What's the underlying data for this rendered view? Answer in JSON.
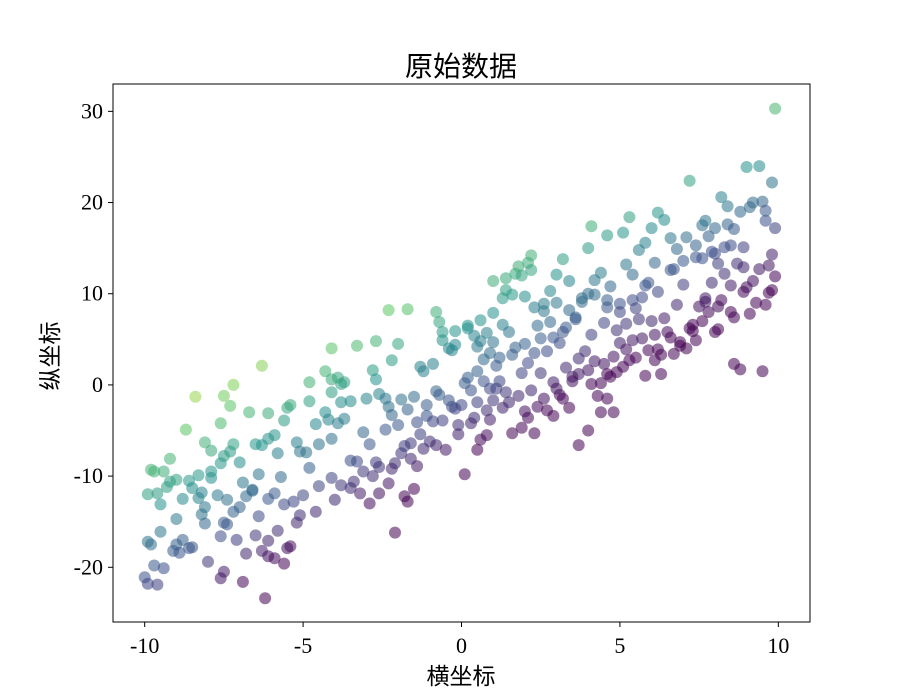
{
  "chart_data": {
    "type": "scatter",
    "title": "原始数据",
    "xlabel": "横坐标",
    "ylabel": "纵坐标",
    "xlim": [
      -11,
      11
    ],
    "ylim": [
      -26,
      33
    ],
    "xticks": [
      -10,
      -5,
      0,
      5,
      10
    ],
    "yticks": [
      -20,
      -10,
      0,
      10,
      20,
      30
    ],
    "tick_labels_x": [
      "-10",
      "-5",
      "0",
      "5",
      "10"
    ],
    "tick_labels_y": [
      "-20",
      "-10",
      "0",
      "10",
      "20",
      "30"
    ],
    "grid": false,
    "colormap": "viridis",
    "marker_alpha": 0.55,
    "points": [
      [
        -10.0,
        -21.1
      ],
      [
        -9.9,
        -21.8
      ],
      [
        -9.6,
        -21.9
      ],
      [
        -9.7,
        -19.8
      ],
      [
        -9.9,
        -17.2
      ],
      [
        -9.8,
        -17.5
      ],
      [
        -9.5,
        -16.1
      ],
      [
        -9.1,
        -18.2
      ],
      [
        -9.0,
        -17.5
      ],
      [
        -8.8,
        -17.0
      ],
      [
        -8.6,
        -17.9
      ],
      [
        -8.5,
        -17.8
      ],
      [
        -8.1,
        -15.2
      ],
      [
        -8.2,
        -14.2
      ],
      [
        -7.6,
        -16.6
      ],
      [
        -7.5,
        -15.1
      ],
      [
        -7.4,
        -15.3
      ],
      [
        -7.5,
        -20.5
      ],
      [
        -7.6,
        -21.2
      ],
      [
        -6.9,
        -21.6
      ],
      [
        -6.8,
        -18.5
      ],
      [
        -6.3,
        -18.2
      ],
      [
        -6.1,
        -18.8
      ],
      [
        -5.9,
        -19.0
      ],
      [
        -5.6,
        -19.6
      ],
      [
        -6.2,
        -23.4
      ],
      [
        -6.1,
        -17.1
      ],
      [
        -5.4,
        -17.7
      ],
      [
        -5.5,
        -17.9
      ],
      [
        -9.9,
        -12.0
      ],
      [
        -9.6,
        -11.9
      ],
      [
        -9.5,
        -13.1
      ],
      [
        -9.3,
        -11.2
      ],
      [
        -9.2,
        -10.6
      ],
      [
        -9.0,
        -14.7
      ],
      [
        -8.8,
        -12.5
      ],
      [
        -8.6,
        -10.5
      ],
      [
        -8.5,
        -11.3
      ],
      [
        -8.3,
        -12.4
      ],
      [
        -8.2,
        -11.8
      ],
      [
        -8.1,
        -13.4
      ],
      [
        -7.9,
        -10.2
      ],
      [
        -7.7,
        -12.1
      ],
      [
        -7.4,
        -12.6
      ],
      [
        -7.2,
        -13.9
      ],
      [
        -7.0,
        -13.4
      ],
      [
        -6.8,
        -12.2
      ],
      [
        -6.6,
        -11.6
      ],
      [
        -6.4,
        -14.4
      ],
      [
        -6.1,
        -12.5
      ],
      [
        -5.9,
        -11.9
      ],
      [
        -5.6,
        -13.1
      ],
      [
        -5.3,
        -12.8
      ],
      [
        -5.2,
        -15.1
      ],
      [
        -9.8,
        -9.3
      ],
      [
        -9.7,
        -9.5
      ],
      [
        -9.4,
        -9.5
      ],
      [
        -9.2,
        -8.1
      ],
      [
        -9.0,
        -10.4
      ],
      [
        -8.7,
        -4.9
      ],
      [
        -8.3,
        -9.9
      ],
      [
        -8.1,
        -6.3
      ],
      [
        -7.9,
        -7.2
      ],
      [
        -7.6,
        -8.6
      ],
      [
        -7.5,
        -7.8
      ],
      [
        -7.3,
        -7.3
      ],
      [
        -7.2,
        -6.5
      ],
      [
        -7.0,
        -8.5
      ],
      [
        -6.7,
        -3.0
      ],
      [
        -7.6,
        -4.2
      ],
      [
        -7.5,
        -1.2
      ],
      [
        -7.3,
        -2.3
      ],
      [
        -7.2,
        0.0
      ],
      [
        -6.5,
        -6.5
      ],
      [
        -6.3,
        -6.6
      ],
      [
        -6.1,
        -3.1
      ],
      [
        -6.1,
        -5.9
      ],
      [
        -5.9,
        -5.5
      ],
      [
        -5.8,
        -7.5
      ],
      [
        -5.6,
        -3.9
      ],
      [
        -5.5,
        -2.5
      ],
      [
        -5.4,
        -2.2
      ],
      [
        -5.2,
        -6.3
      ],
      [
        -5.1,
        -7.3
      ],
      [
        -4.9,
        -7.4
      ],
      [
        -4.8,
        -1.8
      ],
      [
        -4.6,
        -4.3
      ],
      [
        -4.5,
        -6.5
      ],
      [
        -4.3,
        -3.0
      ],
      [
        -4.2,
        -3.8
      ],
      [
        -4.1,
        -5.9
      ],
      [
        -3.9,
        -4.2
      ],
      [
        -3.8,
        -1.9
      ],
      [
        -3.7,
        -3.7
      ],
      [
        -3.5,
        -8.3
      ],
      [
        -3.3,
        -8.4
      ],
      [
        -3.1,
        -5.2
      ],
      [
        -2.9,
        -6.5
      ],
      [
        -2.7,
        -8.5
      ],
      [
        -2.4,
        -4.9
      ],
      [
        -2.3,
        -2.4
      ],
      [
        -2.2,
        -3.3
      ],
      [
        -2.0,
        -4.4
      ],
      [
        -1.9,
        -7.5
      ],
      [
        -1.8,
        -6.7
      ],
      [
        -1.6,
        -6.4
      ],
      [
        -1.4,
        -4.1
      ],
      [
        -1.3,
        -5.4
      ],
      [
        -1.1,
        -3.4
      ],
      [
        -0.9,
        -4.0
      ],
      [
        -4.5,
        -11.1
      ],
      [
        -4.1,
        -10.2
      ],
      [
        -3.8,
        -11.0
      ],
      [
        -3.5,
        -11.3
      ],
      [
        -3.1,
        -9.5
      ],
      [
        -2.9,
        -13.0
      ],
      [
        -2.6,
        -11.9
      ],
      [
        -2.3,
        -10.8
      ],
      [
        -2.1,
        -16.2
      ],
      [
        -1.8,
        -12.2
      ],
      [
        -1.5,
        -11.4
      ],
      [
        -4.1,
        -0.8
      ],
      [
        -3.8,
        0.1
      ],
      [
        -3.5,
        -1.8
      ],
      [
        -3.0,
        -1.5
      ],
      [
        -2.6,
        -1.0
      ],
      [
        -2.4,
        -1.5
      ],
      [
        -1.9,
        -1.6
      ],
      [
        -1.7,
        -2.7
      ],
      [
        -1.5,
        -1.3
      ],
      [
        -1.1,
        -2.2
      ],
      [
        -0.8,
        -0.7
      ],
      [
        -0.7,
        -1.1
      ],
      [
        -0.5,
        -7.1
      ],
      [
        -0.3,
        -2.4
      ],
      [
        -0.1,
        -4.4
      ],
      [
        -6.3,
        2.1
      ],
      [
        -4.8,
        0.3
      ],
      [
        -4.3,
        1.5
      ],
      [
        -4.1,
        0.6
      ],
      [
        -3.9,
        0.8
      ],
      [
        -3.7,
        0.3
      ],
      [
        -4.1,
        4.0
      ],
      [
        -3.3,
        4.3
      ],
      [
        -2.8,
        1.6
      ],
      [
        -2.7,
        0.6
      ],
      [
        -2.7,
        4.8
      ],
      [
        -2.2,
        2.7
      ],
      [
        -2.0,
        4.5
      ],
      [
        -2.3,
        8.2
      ],
      [
        -1.7,
        8.3
      ],
      [
        -1.3,
        2.0
      ],
      [
        -1.2,
        1.5
      ],
      [
        -0.9,
        2.3
      ],
      [
        -0.8,
        8.0
      ],
      [
        -0.7,
        6.9
      ],
      [
        -0.6,
        5.8
      ],
      [
        -0.4,
        4.0
      ],
      [
        -0.3,
        3.8
      ],
      [
        -0.2,
        4.4
      ],
      [
        0.2,
        6.2
      ],
      [
        0.4,
        5.4
      ],
      [
        0.5,
        4.2
      ],
      [
        0.6,
        4.8
      ],
      [
        0.8,
        5.7
      ],
      [
        0.9,
        3.5
      ],
      [
        1.0,
        4.7
      ],
      [
        0.2,
        0.8
      ],
      [
        0.3,
        -0.6
      ],
      [
        0.1,
        0.2
      ],
      [
        0.7,
        0.4
      ],
      [
        1.1,
        -0.4
      ],
      [
        1.2,
        0.4
      ],
      [
        0.5,
        -1.9
      ],
      [
        0.9,
        -3.8
      ],
      [
        0.8,
        -5.5
      ],
      [
        0.5,
        -7.1
      ],
      [
        0.1,
        -9.8
      ],
      [
        1.3,
        -2.5
      ],
      [
        1.6,
        -5.3
      ],
      [
        1.9,
        -4.7
      ],
      [
        2.1,
        -3.6
      ],
      [
        2.3,
        -5.3
      ],
      [
        2.4,
        -2.4
      ],
      [
        2.7,
        -2.8
      ],
      [
        2.9,
        -3.4
      ],
      [
        3.1,
        -1.1
      ],
      [
        3.4,
        -2.5
      ],
      [
        3.7,
        -6.6
      ],
      [
        4.0,
        -5.0
      ],
      [
        4.3,
        -1.2
      ],
      [
        4.6,
        -1.5
      ],
      [
        4.8,
        -3.0
      ],
      [
        1.0,
        11.4
      ],
      [
        1.4,
        11.7
      ],
      [
        1.7,
        12.2
      ],
      [
        1.9,
        12.0
      ],
      [
        2.1,
        13.4
      ],
      [
        2.2,
        14.2
      ],
      [
        1.3,
        9.5
      ],
      [
        1.6,
        9.9
      ],
      [
        2.0,
        9.7
      ],
      [
        2.3,
        8.5
      ],
      [
        2.6,
        8.1
      ],
      [
        2.8,
        10.3
      ],
      [
        3.0,
        9.0
      ],
      [
        3.2,
        13.8
      ],
      [
        3.4,
        8.2
      ],
      [
        3.6,
        7.4
      ],
      [
        3.8,
        9.1
      ],
      [
        4.0,
        10.0
      ],
      [
        4.2,
        11.5
      ],
      [
        4.4,
        12.3
      ],
      [
        4.6,
        9.3
      ],
      [
        4.7,
        10.8
      ],
      [
        5.0,
        8.9
      ],
      [
        5.2,
        13.2
      ],
      [
        5.4,
        12.1
      ],
      [
        5.5,
        8.4
      ],
      [
        5.7,
        9.6
      ],
      [
        5.9,
        11.2
      ],
      [
        6.1,
        13.4
      ],
      [
        6.2,
        18.9
      ],
      [
        6.0,
        17.2
      ],
      [
        5.8,
        15.6
      ],
      [
        5.6,
        14.8
      ],
      [
        5.3,
        18.4
      ],
      [
        5.1,
        16.7
      ],
      [
        4.6,
        16.4
      ],
      [
        4.1,
        17.4
      ],
      [
        4.0,
        15.0
      ],
      [
        6.4,
        18.1
      ],
      [
        6.6,
        16.1
      ],
      [
        6.8,
        14.9
      ],
      [
        7.0,
        13.6
      ],
      [
        7.2,
        22.4
      ],
      [
        7.4,
        15.3
      ],
      [
        7.6,
        17.5
      ],
      [
        7.8,
        16.3
      ],
      [
        8.0,
        14.4
      ],
      [
        8.2,
        20.6
      ],
      [
        8.4,
        17.6
      ],
      [
        8.6,
        17.1
      ],
      [
        8.8,
        19.0
      ],
      [
        9.0,
        23.9
      ],
      [
        9.2,
        20.0
      ],
      [
        9.4,
        24.0
      ],
      [
        9.6,
        18.0
      ],
      [
        9.8,
        22.2
      ],
      [
        9.9,
        30.3
      ],
      [
        9.9,
        17.2
      ],
      [
        9.5,
        20.1
      ],
      [
        9.1,
        19.5
      ],
      [
        8.9,
        15.1
      ],
      [
        8.5,
        15.3
      ],
      [
        8.3,
        12.2
      ],
      [
        8.1,
        13.3
      ],
      [
        7.9,
        11.2
      ],
      [
        7.7,
        9.5
      ],
      [
        7.5,
        8.6
      ],
      [
        7.3,
        5.9
      ],
      [
        7.1,
        4.0
      ],
      [
        6.9,
        4.7
      ],
      [
        6.6,
        5.2
      ],
      [
        6.3,
        3.3
      ],
      [
        6.1,
        5.5
      ],
      [
        5.9,
        3.8
      ],
      [
        5.7,
        5.1
      ],
      [
        5.4,
        4.9
      ],
      [
        5.2,
        3.9
      ],
      [
        5.0,
        4.6
      ],
      [
        4.8,
        3.1
      ],
      [
        4.6,
        1.2
      ],
      [
        4.4,
        0.2
      ],
      [
        4.2,
        2.6
      ],
      [
        3.9,
        3.7
      ],
      [
        3.7,
        1.2
      ],
      [
        3.5,
        0.9
      ],
      [
        3.3,
        6.3
      ],
      [
        3.1,
        4.6
      ],
      [
        2.9,
        5.2
      ],
      [
        2.7,
        3.7
      ],
      [
        2.5,
        5.1
      ],
      [
        2.3,
        3.5
      ],
      [
        2.1,
        2.4
      ],
      [
        1.9,
        1.3
      ],
      [
        1.7,
        4.1
      ],
      [
        1.5,
        5.8
      ],
      [
        1.3,
        6.6
      ],
      [
        1.1,
        2.1
      ],
      [
        0.9,
        -0.4
      ],
      [
        0.7,
        2.8
      ],
      [
        0.5,
        1.5
      ],
      [
        3.2,
        -1.5
      ],
      [
        4.4,
        -3.0
      ],
      [
        5.1,
        2.0
      ],
      [
        6.3,
        1.2
      ],
      [
        8.6,
        2.3
      ],
      [
        8.8,
        1.7
      ],
      [
        9.5,
        1.5
      ],
      [
        9.7,
        13.1
      ],
      [
        9.8,
        10.4
      ],
      [
        9.3,
        9.0
      ],
      [
        8.9,
        10.2
      ],
      [
        8.5,
        8.0
      ],
      [
        8.1,
        6.1
      ],
      [
        7.6,
        7.0
      ],
      [
        7.2,
        6.2
      ],
      [
        6.8,
        8.8
      ],
      [
        6.4,
        7.3
      ],
      [
        6.0,
        7.0
      ],
      [
        5.6,
        7.2
      ],
      [
        5.2,
        6.7
      ],
      [
        4.9,
        6.0
      ],
      [
        4.5,
        6.8
      ],
      [
        4.1,
        5.5
      ],
      [
        3.6,
        7.2
      ],
      [
        3.2,
        5.8
      ],
      [
        2.8,
        6.9
      ],
      [
        2.4,
        6.5
      ],
      [
        2.0,
        4.5
      ],
      [
        1.6,
        3.3
      ],
      [
        1.2,
        3.0
      ],
      [
        7.6,
        13.9
      ],
      [
        7.9,
        14.6
      ],
      [
        8.3,
        15.1
      ],
      [
        8.7,
        13.3
      ],
      [
        9.0,
        10.7
      ],
      [
        9.4,
        12.7
      ],
      [
        7.0,
        11.0
      ],
      [
        6.6,
        12.6
      ],
      [
        6.2,
        10.2
      ],
      [
        5.8,
        10.9
      ],
      [
        5.4,
        9.3
      ],
      [
        5.0,
        8.0
      ],
      [
        4.6,
        8.5
      ],
      [
        4.2,
        9.9
      ],
      [
        3.8,
        9.5
      ],
      [
        3.4,
        11.4
      ],
      [
        3.0,
        12.1
      ],
      [
        2.6,
        8.9
      ],
      [
        2.2,
        12.6
      ],
      [
        1.8,
        13.0
      ],
      [
        1.4,
        10.4
      ],
      [
        1.0,
        7.9
      ],
      [
        0.6,
        7.1
      ],
      [
        0.2,
        6.5
      ],
      [
        -0.2,
        5.9
      ],
      [
        -0.6,
        4.9
      ],
      [
        8.4,
        19.6
      ],
      [
        8.0,
        17.2
      ],
      [
        7.7,
        18.0
      ],
      [
        7.4,
        14.0
      ],
      [
        7.1,
        16.2
      ],
      [
        6.7,
        12.7
      ],
      [
        9.6,
        19.1
      ],
      [
        9.8,
        14.3
      ],
      [
        9.9,
        11.9
      ],
      [
        8.2,
        9.3
      ],
      [
        7.8,
        8.0
      ],
      [
        -8.4,
        -1.3
      ],
      [
        -7.9,
        -9.5
      ],
      [
        -6.9,
        -10.7
      ],
      [
        -6.6,
        -11.5
      ],
      [
        -6.4,
        -9.8
      ],
      [
        -5.7,
        -10.1
      ],
      [
        -5.0,
        -12.1
      ],
      [
        -4.8,
        -9.1
      ],
      [
        -3.2,
        -11.9
      ],
      [
        -2.6,
        -9.0
      ],
      [
        -2.1,
        -8.6
      ],
      [
        -1.7,
        -12.8
      ],
      [
        -1.4,
        -8.9
      ],
      [
        -1.0,
        -6.2
      ],
      [
        -0.6,
        -3.9
      ],
      [
        -0.4,
        -1.7
      ],
      [
        -0.2,
        -2.6
      ],
      [
        0.0,
        -2.2
      ],
      [
        0.3,
        -4.2
      ],
      [
        0.6,
        -6.0
      ],
      [
        1.0,
        -1.7
      ],
      [
        1.4,
        -0.8
      ],
      [
        1.8,
        -1.2
      ],
      [
        2.2,
        -0.6
      ],
      [
        2.5,
        1.3
      ],
      [
        2.9,
        0.3
      ],
      [
        3.3,
        1.9
      ],
      [
        3.7,
        2.9
      ],
      [
        4.1,
        0.1
      ],
      [
        4.5,
        2.3
      ],
      [
        4.9,
        1.4
      ],
      [
        5.3,
        2.7
      ],
      [
        5.8,
        1.0
      ],
      [
        6.2,
        3.9
      ],
      [
        6.5,
        5.8
      ],
      [
        6.9,
        4.3
      ],
      [
        7.3,
        6.6
      ],
      [
        7.7,
        9.1
      ],
      [
        8.1,
        8.6
      ],
      [
        8.5,
        10.9
      ],
      [
        8.9,
        12.9
      ],
      [
        9.2,
        11.4
      ],
      [
        9.6,
        8.8
      ],
      [
        -9.4,
        -20.1
      ],
      [
        -8.9,
        -18.4
      ],
      [
        -8.0,
        -19.4
      ],
      [
        -7.1,
        -17.0
      ],
      [
        -6.5,
        -16.5
      ],
      [
        -5.8,
        -16.0
      ],
      [
        -5.1,
        -14.3
      ],
      [
        -4.6,
        -13.9
      ],
      [
        -4.0,
        -12.6
      ],
      [
        -3.4,
        -10.6
      ],
      [
        -2.8,
        -10.0
      ],
      [
        -2.2,
        -9.2
      ],
      [
        -1.6,
        -8.1
      ],
      [
        -1.2,
        -7.0
      ],
      [
        -0.8,
        -6.6
      ],
      [
        -0.1,
        -5.4
      ],
      [
        0.4,
        -3.6
      ],
      [
        0.8,
        -2.8
      ],
      [
        1.5,
        -1.9
      ],
      [
        2.0,
        -2.9
      ],
      [
        2.6,
        -1.5
      ],
      [
        3.0,
        -0.4
      ],
      [
        3.5,
        0.4
      ],
      [
        4.0,
        1.6
      ],
      [
        4.7,
        0.9
      ],
      [
        5.5,
        3.0
      ],
      [
        6.1,
        2.7
      ],
      [
        6.7,
        3.4
      ],
      [
        7.4,
        4.9
      ],
      [
        8.0,
        5.8
      ],
      [
        8.6,
        7.4
      ],
      [
        9.1,
        7.8
      ],
      [
        9.7,
        10.1
      ]
    ]
  }
}
